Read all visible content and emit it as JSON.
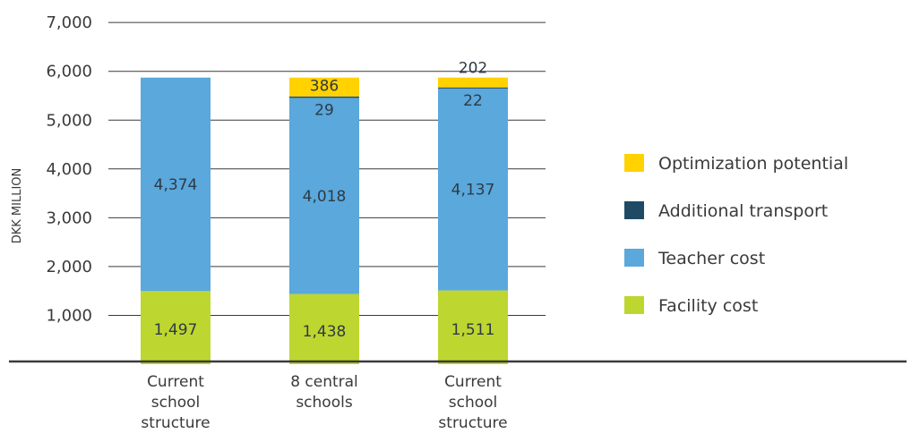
{
  "chart_data": {
    "type": "bar",
    "stacked": true,
    "ylabel": "DKK MILLION",
    "yticks": [
      "1,000",
      "2,000",
      "3,000",
      "4,000",
      "5,000",
      "6,000",
      "7,000"
    ],
    "ytick_values": [
      1000,
      2000,
      3000,
      4000,
      5000,
      6000,
      7000
    ],
    "ylim": [
      0,
      7000
    ],
    "grid": true,
    "legend_position": "right",
    "categories": [
      [
        "Current",
        "school",
        "structure"
      ],
      [
        "8 central",
        "schools"
      ],
      [
        "Current",
        "school",
        "structure"
      ]
    ],
    "series": [
      {
        "name": "Facility cost",
        "color": "#bed630",
        "values": [
          1497,
          1438,
          1511
        ],
        "labels": [
          "1,497",
          "1,438",
          "1,511"
        ]
      },
      {
        "name": "Teacher cost",
        "color": "#5aa8dc",
        "values": [
          4374,
          4018,
          4137
        ],
        "labels": [
          "4,374",
          "4,018",
          "4,137"
        ]
      },
      {
        "name": "Additional transport",
        "color": "#1f4a66",
        "values": [
          0,
          29,
          22
        ],
        "labels": [
          "",
          "29",
          "22"
        ]
      },
      {
        "name": "Optimization potential",
        "color": "#ffd200",
        "values": [
          0,
          386,
          202
        ],
        "labels": [
          "",
          "386",
          "202"
        ]
      }
    ],
    "legend_order": [
      "Optimization potential",
      "Additional transport",
      "Teacher cost",
      "Facility cost"
    ]
  }
}
